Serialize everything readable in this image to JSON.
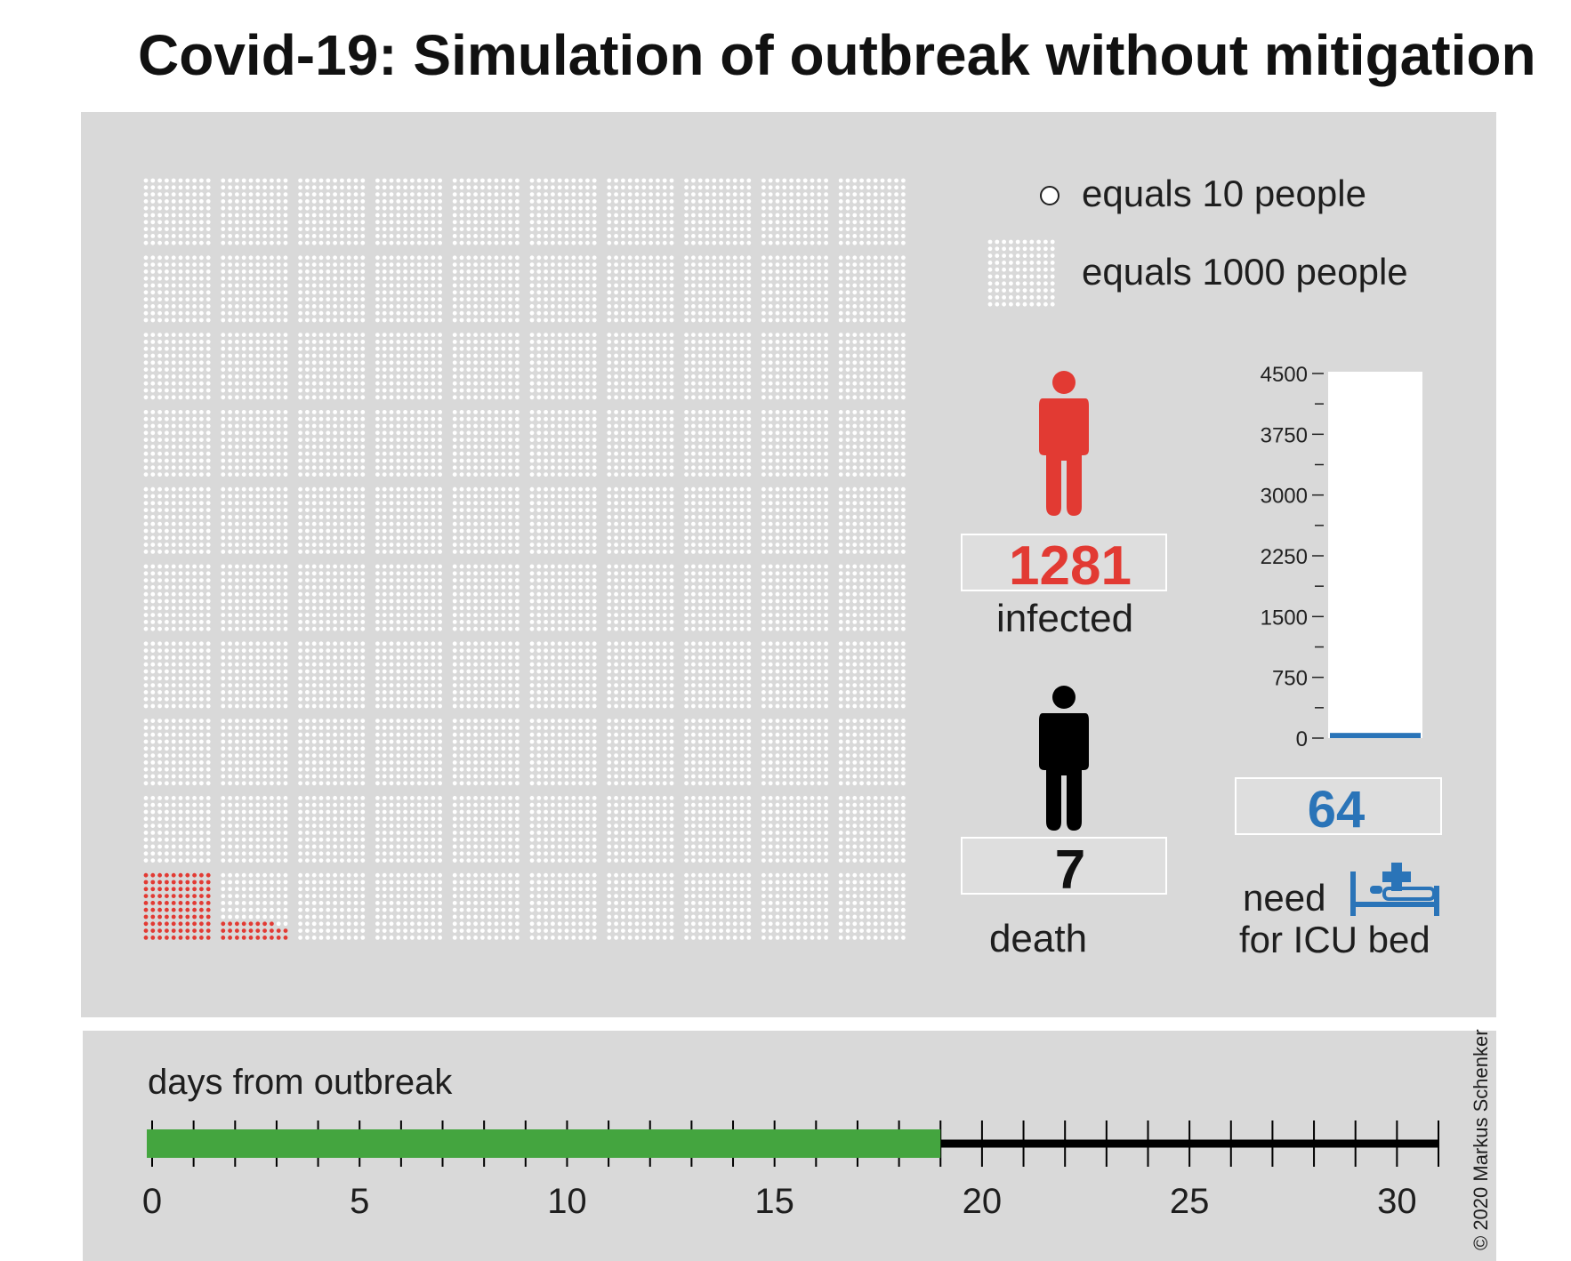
{
  "title": "Covid-19: Simulation of outbreak without mitigation",
  "legend": {
    "dot_label": "equals 10 people",
    "block_label": "equals 1000 people"
  },
  "counters": {
    "infected_value": "1281",
    "infected_label": "infected",
    "death_value": "7",
    "death_label": "death",
    "icu_value": "64",
    "icu_label_line1": "need",
    "icu_label_line2": "for ICU bed"
  },
  "timeline": {
    "label": "days from outbreak"
  },
  "credit": "© 2020 Markus Schenker",
  "colors": {
    "panel_bg": "#d9d9d9",
    "dot_empty": "#ffffff",
    "infected": "#e23a33",
    "death": "#000000",
    "icu": "#2a74b8",
    "progress": "#44a53f"
  },
  "icons": {
    "infected_icon": "person-icon",
    "death_icon": "person-icon",
    "icu_icon": "hospital-bed-icon"
  },
  "chart_data": [
    {
      "type": "waffle",
      "grid_blocks": [
        10,
        10
      ],
      "block_dots": [
        10,
        10
      ],
      "people_per_dot": 10,
      "people_per_block": 1000,
      "infected_people": 1281
    },
    {
      "type": "bar",
      "categories": [
        ""
      ],
      "values": [
        64
      ],
      "ylim": [
        0,
        4500
      ],
      "yticks": [
        0,
        750,
        1500,
        2250,
        3000,
        3750,
        4500
      ]
    },
    {
      "type": "progress",
      "xlim": [
        0,
        31
      ],
      "xticks": [
        0,
        5,
        10,
        15,
        20,
        25,
        30
      ],
      "value": 19
    }
  ]
}
